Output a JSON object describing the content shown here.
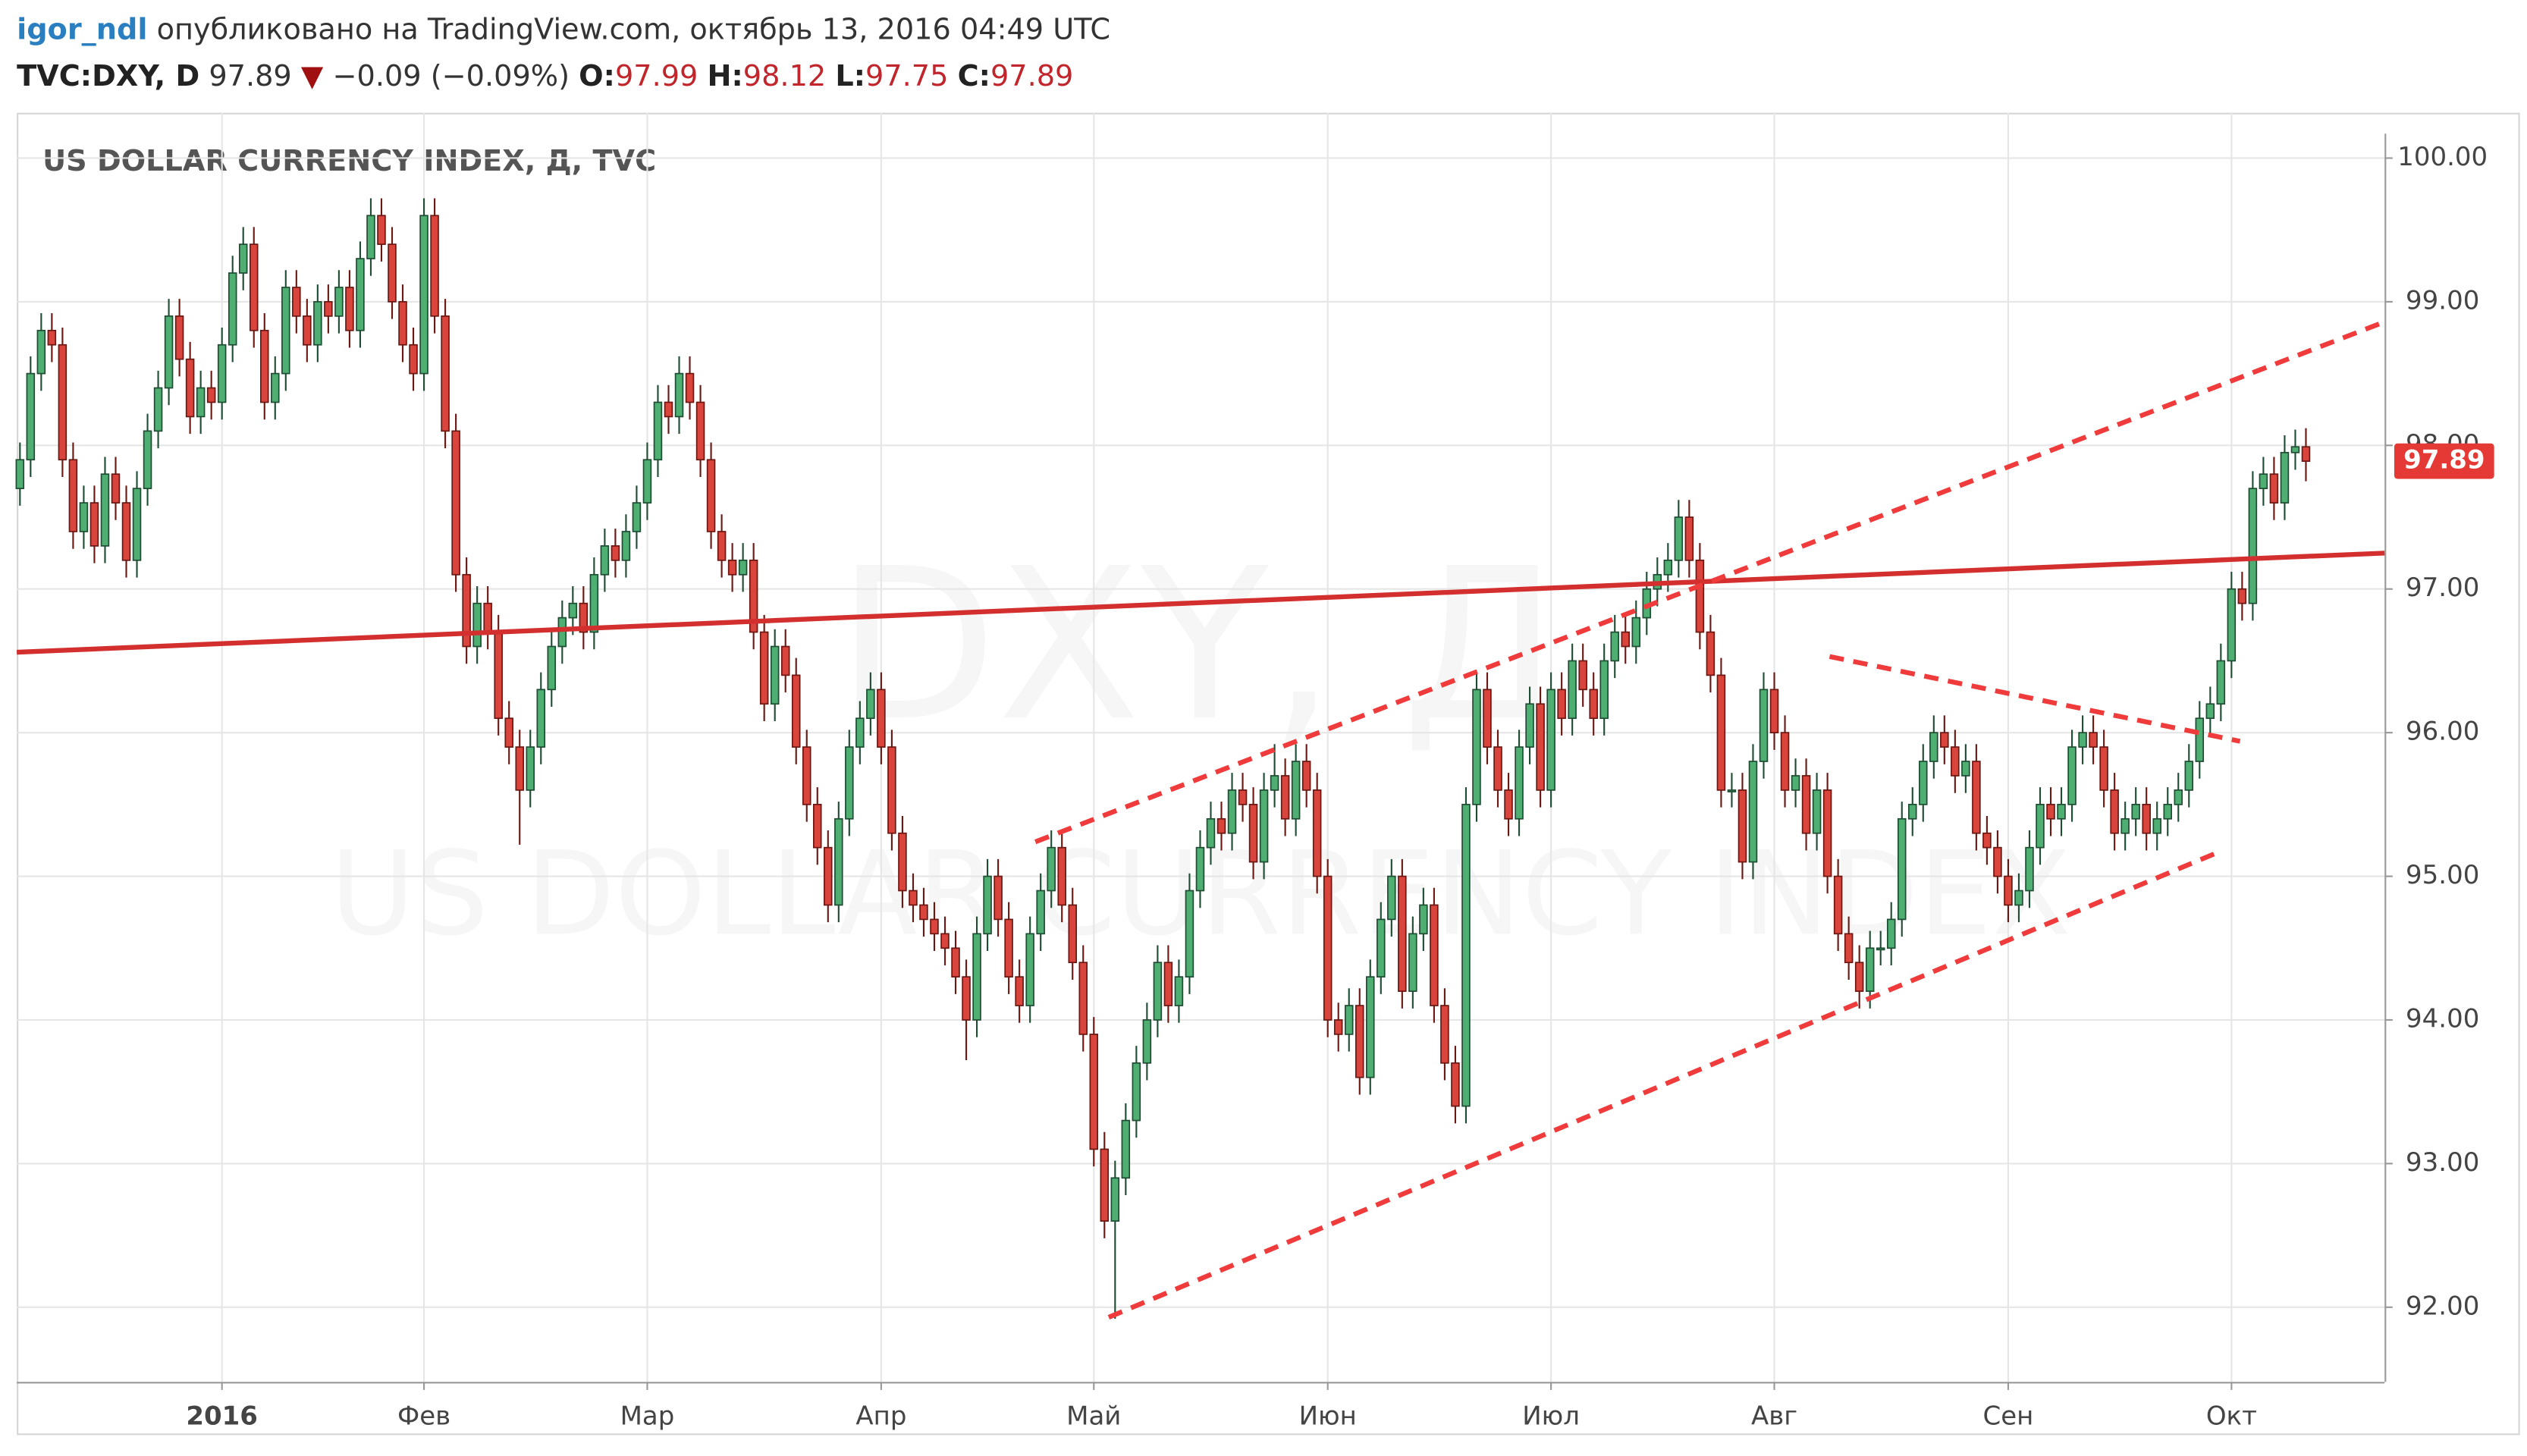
{
  "header": {
    "author": "igor_ndl",
    "published": "опубликовано на TradingView.com, октябрь 13, 2016 04:49 UTC",
    "symbol": "TVC:DXY, D",
    "direction": "▼",
    "change": "−0.09 (−0.09%)",
    "open_label": "O:",
    "high_label": "H:",
    "low_label": "L:",
    "close_label": "C:"
  },
  "chart_data": {
    "type": "candlestick",
    "title": "US DOLLAR CURRENCY INDEX, Д, TVC",
    "watermark": "DXY, Д",
    "watermark_subtitle": "US DOLLAR CURRENCY INDEX",
    "up_color": "#4fae72",
    "down_color": "#d9453c",
    "grid": true,
    "xlim": [
      -0.3,
      222.4
    ],
    "ylim": [
      91.48,
      100.17
    ],
    "xticks": [
      {
        "value": 19,
        "label": "2016"
      },
      {
        "value": 38,
        "label": "Фев"
      },
      {
        "value": 59,
        "label": "Мар"
      },
      {
        "value": 81,
        "label": "Апр"
      },
      {
        "value": 101,
        "label": "Май"
      },
      {
        "value": 123,
        "label": "Июн"
      },
      {
        "value": 144,
        "label": "Июл"
      },
      {
        "value": 165,
        "label": "Авг"
      },
      {
        "value": 187,
        "label": "Сен"
      },
      {
        "value": 208,
        "label": "Окт"
      }
    ],
    "yticks": [
      {
        "value": 92,
        "label": "92.00"
      },
      {
        "value": 93,
        "label": "93.00"
      },
      {
        "value": 94,
        "label": "94.00"
      },
      {
        "value": 95,
        "label": "95.00"
      },
      {
        "value": 96,
        "label": "96.00"
      },
      {
        "value": 97,
        "label": "97.00"
      },
      {
        "value": 98,
        "label": "98.00"
      },
      {
        "value": 99,
        "label": "99.00"
      },
      {
        "value": 100,
        "label": "100.00"
      }
    ],
    "drawings": [
      {
        "x": [
          -0.3,
          222.4
        ],
        "y": [
          96.56,
          97.25
        ],
        "color": "#d32f2f",
        "dashed": false
      },
      {
        "x": [
          95.5,
          222.4
        ],
        "y": [
          95.24,
          98.86
        ],
        "color": "#ef3b3b",
        "dashed": true
      },
      {
        "x": [
          102.4,
          206.5
        ],
        "y": [
          91.93,
          95.16
        ],
        "color": "#ef3b3b",
        "dashed": true
      },
      {
        "x": [
          170.2,
          208.8
        ],
        "y": [
          96.53,
          95.94
        ],
        "color": "#ef3b3b",
        "dashed": true
      }
    ],
    "candles": [
      [
        97.7,
        98.02,
        97.58,
        97.9
      ],
      [
        97.9,
        98.62,
        97.78,
        98.5
      ],
      [
        98.5,
        98.92,
        98.38,
        98.8
      ],
      [
        98.8,
        98.92,
        98.58,
        98.7
      ],
      [
        98.7,
        98.82,
        97.78,
        97.9
      ],
      [
        97.9,
        98.02,
        97.28,
        97.4
      ],
      [
        97.4,
        97.72,
        97.28,
        97.6
      ],
      [
        97.6,
        97.72,
        97.18,
        97.3
      ],
      [
        97.3,
        97.92,
        97.18,
        97.8
      ],
      [
        97.8,
        97.92,
        97.48,
        97.6
      ],
      [
        97.6,
        97.72,
        97.08,
        97.2
      ],
      [
        97.2,
        97.82,
        97.08,
        97.7
      ],
      [
        97.7,
        98.22,
        97.58,
        98.1
      ],
      [
        98.1,
        98.52,
        97.98,
        98.4
      ],
      [
        98.4,
        99.02,
        98.28,
        98.9
      ],
      [
        98.9,
        99.02,
        98.48,
        98.6
      ],
      [
        98.6,
        98.72,
        98.08,
        98.2
      ],
      [
        98.2,
        98.52,
        98.08,
        98.4
      ],
      [
        98.4,
        98.52,
        98.18,
        98.3
      ],
      [
        98.3,
        98.82,
        98.18,
        98.7
      ],
      [
        98.7,
        99.32,
        98.58,
        99.2
      ],
      [
        99.2,
        99.52,
        99.08,
        99.4
      ],
      [
        99.4,
        99.52,
        98.68,
        98.8
      ],
      [
        98.8,
        98.92,
        98.18,
        98.3
      ],
      [
        98.3,
        98.62,
        98.18,
        98.5
      ],
      [
        98.5,
        99.22,
        98.38,
        99.1
      ],
      [
        99.1,
        99.22,
        98.78,
        98.9
      ],
      [
        98.9,
        99.02,
        98.58,
        98.7
      ],
      [
        98.7,
        99.12,
        98.58,
        99.0
      ],
      [
        99.0,
        99.12,
        98.78,
        98.9
      ],
      [
        98.9,
        99.22,
        98.78,
        99.1
      ],
      [
        99.1,
        99.22,
        98.68,
        98.8
      ],
      [
        98.8,
        99.42,
        98.68,
        99.3
      ],
      [
        99.3,
        99.72,
        99.18,
        99.6
      ],
      [
        99.6,
        99.72,
        99.28,
        99.4
      ],
      [
        99.4,
        99.52,
        98.88,
        99.0
      ],
      [
        99.0,
        99.12,
        98.58,
        98.7
      ],
      [
        98.7,
        98.82,
        98.38,
        98.5
      ],
      [
        98.5,
        99.72,
        98.38,
        99.6
      ],
      [
        99.6,
        99.72,
        98.78,
        98.9
      ],
      [
        98.9,
        99.02,
        97.98,
        98.1
      ],
      [
        98.1,
        98.22,
        96.98,
        97.1
      ],
      [
        97.1,
        97.22,
        96.48,
        96.6
      ],
      [
        96.6,
        97.02,
        96.48,
        96.9
      ],
      [
        96.9,
        97.02,
        96.58,
        96.7
      ],
      [
        96.7,
        96.82,
        95.98,
        96.1
      ],
      [
        96.1,
        96.22,
        95.78,
        95.9
      ],
      [
        95.9,
        96.02,
        95.22,
        95.6
      ],
      [
        95.6,
        96.02,
        95.48,
        95.9
      ],
      [
        95.9,
        96.42,
        95.78,
        96.3
      ],
      [
        96.3,
        96.72,
        96.18,
        96.6
      ],
      [
        96.6,
        96.92,
        96.48,
        96.8
      ],
      [
        96.8,
        97.02,
        96.68,
        96.9
      ],
      [
        96.9,
        97.02,
        96.58,
        96.7
      ],
      [
        96.7,
        97.22,
        96.58,
        97.1
      ],
      [
        97.1,
        97.42,
        96.98,
        97.3
      ],
      [
        97.3,
        97.42,
        97.08,
        97.2
      ],
      [
        97.2,
        97.52,
        97.08,
        97.4
      ],
      [
        97.4,
        97.72,
        97.28,
        97.6
      ],
      [
        97.6,
        98.02,
        97.48,
        97.9
      ],
      [
        97.9,
        98.42,
        97.78,
        98.3
      ],
      [
        98.3,
        98.42,
        98.08,
        98.2
      ],
      [
        98.2,
        98.62,
        98.08,
        98.5
      ],
      [
        98.5,
        98.62,
        98.18,
        98.3
      ],
      [
        98.3,
        98.42,
        97.78,
        97.9
      ],
      [
        97.9,
        98.02,
        97.28,
        97.4
      ],
      [
        97.4,
        97.52,
        97.08,
        97.2
      ],
      [
        97.2,
        97.32,
        96.98,
        97.1
      ],
      [
        97.1,
        97.32,
        96.98,
        97.2
      ],
      [
        97.2,
        97.32,
        96.58,
        96.7
      ],
      [
        96.7,
        96.82,
        96.08,
        96.2
      ],
      [
        96.2,
        96.72,
        96.08,
        96.6
      ],
      [
        96.6,
        96.72,
        96.28,
        96.4
      ],
      [
        96.4,
        96.52,
        95.78,
        95.9
      ],
      [
        95.9,
        96.02,
        95.38,
        95.5
      ],
      [
        95.5,
        95.62,
        95.08,
        95.2
      ],
      [
        95.2,
        95.32,
        94.68,
        94.8
      ],
      [
        94.8,
        95.52,
        94.68,
        95.4
      ],
      [
        95.4,
        96.02,
        95.28,
        95.9
      ],
      [
        95.9,
        96.22,
        95.78,
        96.1
      ],
      [
        96.1,
        96.42,
        95.98,
        96.3
      ],
      [
        96.3,
        96.42,
        95.78,
        95.9
      ],
      [
        95.9,
        96.02,
        95.18,
        95.3
      ],
      [
        95.3,
        95.42,
        94.78,
        94.9
      ],
      [
        94.9,
        95.02,
        94.68,
        94.8
      ],
      [
        94.8,
        94.92,
        94.58,
        94.7
      ],
      [
        94.7,
        94.82,
        94.48,
        94.6
      ],
      [
        94.6,
        94.72,
        94.38,
        94.5
      ],
      [
        94.5,
        94.62,
        94.18,
        94.3
      ],
      [
        94.3,
        94.42,
        93.72,
        94.0
      ],
      [
        94.0,
        94.72,
        93.88,
        94.6
      ],
      [
        94.6,
        95.12,
        94.48,
        95.0
      ],
      [
        95.0,
        95.12,
        94.58,
        94.7
      ],
      [
        94.7,
        94.82,
        94.18,
        94.3
      ],
      [
        94.3,
        94.42,
        93.98,
        94.1
      ],
      [
        94.1,
        94.72,
        93.98,
        94.6
      ],
      [
        94.6,
        95.02,
        94.48,
        94.9
      ],
      [
        94.9,
        95.32,
        94.78,
        95.2
      ],
      [
        95.2,
        95.32,
        94.68,
        94.8
      ],
      [
        94.8,
        94.92,
        94.28,
        94.4
      ],
      [
        94.4,
        94.52,
        93.78,
        93.9
      ],
      [
        93.9,
        94.02,
        92.98,
        93.1
      ],
      [
        93.1,
        93.22,
        92.48,
        92.6
      ],
      [
        92.6,
        93.02,
        91.92,
        92.9
      ],
      [
        92.9,
        93.42,
        92.78,
        93.3
      ],
      [
        93.3,
        93.82,
        93.18,
        93.7
      ],
      [
        93.7,
        94.12,
        93.58,
        94.0
      ],
      [
        94.0,
        94.52,
        93.88,
        94.4
      ],
      [
        94.4,
        94.52,
        93.98,
        94.1
      ],
      [
        94.1,
        94.42,
        93.98,
        94.3
      ],
      [
        94.3,
        95.02,
        94.18,
        94.9
      ],
      [
        94.9,
        95.32,
        94.78,
        95.2
      ],
      [
        95.2,
        95.52,
        95.08,
        95.4
      ],
      [
        95.4,
        95.52,
        95.18,
        95.3
      ],
      [
        95.3,
        95.72,
        95.18,
        95.6
      ],
      [
        95.6,
        95.72,
        95.38,
        95.5
      ],
      [
        95.5,
        95.62,
        94.98,
        95.1
      ],
      [
        95.1,
        95.72,
        94.98,
        95.6
      ],
      [
        95.6,
        95.92,
        95.48,
        95.7
      ],
      [
        95.7,
        95.82,
        95.28,
        95.4
      ],
      [
        95.4,
        95.92,
        95.28,
        95.8
      ],
      [
        95.8,
        95.92,
        95.48,
        95.6
      ],
      [
        95.6,
        95.72,
        94.88,
        95.0
      ],
      [
        95.0,
        95.12,
        93.88,
        94.0
      ],
      [
        94.0,
        94.12,
        93.78,
        93.9
      ],
      [
        93.9,
        94.22,
        93.78,
        94.1
      ],
      [
        94.1,
        94.22,
        93.48,
        93.6
      ],
      [
        93.6,
        94.42,
        93.48,
        94.3
      ],
      [
        94.3,
        94.82,
        94.18,
        94.7
      ],
      [
        94.7,
        95.12,
        94.58,
        95.0
      ],
      [
        95.0,
        95.12,
        94.08,
        94.2
      ],
      [
        94.2,
        94.72,
        94.08,
        94.6
      ],
      [
        94.6,
        94.92,
        94.48,
        94.8
      ],
      [
        94.8,
        94.92,
        93.98,
        94.1
      ],
      [
        94.1,
        94.22,
        93.58,
        93.7
      ],
      [
        93.7,
        93.82,
        93.28,
        93.4
      ],
      [
        93.4,
        95.62,
        93.28,
        95.5
      ],
      [
        95.5,
        96.42,
        95.38,
        96.3
      ],
      [
        96.3,
        96.42,
        95.78,
        95.9
      ],
      [
        95.9,
        96.02,
        95.48,
        95.6
      ],
      [
        95.6,
        95.72,
        95.28,
        95.4
      ],
      [
        95.4,
        96.02,
        95.28,
        95.9
      ],
      [
        95.9,
        96.32,
        95.78,
        96.2
      ],
      [
        96.2,
        96.32,
        95.48,
        95.6
      ],
      [
        95.6,
        96.42,
        95.48,
        96.3
      ],
      [
        96.3,
        96.42,
        95.98,
        96.1
      ],
      [
        96.1,
        96.62,
        95.98,
        96.5
      ],
      [
        96.5,
        96.62,
        96.18,
        96.3
      ],
      [
        96.3,
        96.42,
        95.98,
        96.1
      ],
      [
        96.1,
        96.62,
        95.98,
        96.5
      ],
      [
        96.5,
        96.82,
        96.38,
        96.7
      ],
      [
        96.7,
        96.82,
        96.48,
        96.6
      ],
      [
        96.6,
        96.92,
        96.48,
        96.8
      ],
      [
        96.8,
        97.12,
        96.68,
        97.0
      ],
      [
        97.0,
        97.22,
        96.88,
        97.1
      ],
      [
        97.1,
        97.32,
        96.98,
        97.2
      ],
      [
        97.2,
        97.62,
        97.08,
        97.5
      ],
      [
        97.5,
        97.62,
        97.08,
        97.2
      ],
      [
        97.2,
        97.32,
        96.58,
        96.7
      ],
      [
        96.7,
        96.82,
        96.28,
        96.4
      ],
      [
        96.4,
        96.52,
        95.48,
        95.6
      ],
      [
        95.6,
        95.72,
        95.48,
        95.6
      ],
      [
        95.6,
        95.72,
        94.98,
        95.1
      ],
      [
        95.1,
        95.92,
        94.98,
        95.8
      ],
      [
        95.8,
        96.42,
        95.68,
        96.3
      ],
      [
        96.3,
        96.42,
        95.88,
        96.0
      ],
      [
        96.0,
        96.12,
        95.48,
        95.6
      ],
      [
        95.6,
        95.82,
        95.48,
        95.7
      ],
      [
        95.7,
        95.82,
        95.18,
        95.3
      ],
      [
        95.3,
        95.72,
        95.18,
        95.6
      ],
      [
        95.6,
        95.72,
        94.88,
        95.0
      ],
      [
        95.0,
        95.12,
        94.48,
        94.6
      ],
      [
        94.6,
        94.72,
        94.28,
        94.4
      ],
      [
        94.4,
        94.52,
        94.08,
        94.2
      ],
      [
        94.2,
        94.62,
        94.08,
        94.5
      ],
      [
        94.5,
        94.62,
        94.38,
        94.5
      ],
      [
        94.5,
        94.82,
        94.38,
        94.7
      ],
      [
        94.7,
        95.52,
        94.58,
        95.4
      ],
      [
        95.4,
        95.62,
        95.28,
        95.5
      ],
      [
        95.5,
        95.92,
        95.38,
        95.8
      ],
      [
        95.8,
        96.12,
        95.68,
        96.0
      ],
      [
        96.0,
        96.12,
        95.78,
        95.9
      ],
      [
        95.9,
        96.02,
        95.58,
        95.7
      ],
      [
        95.7,
        95.92,
        95.58,
        95.8
      ],
      [
        95.8,
        95.92,
        95.18,
        95.3
      ],
      [
        95.3,
        95.42,
        95.08,
        95.2
      ],
      [
        95.2,
        95.32,
        94.88,
        95.0
      ],
      [
        95.0,
        95.12,
        94.68,
        94.8
      ],
      [
        94.8,
        95.02,
        94.68,
        94.9
      ],
      [
        94.9,
        95.32,
        94.78,
        95.2
      ],
      [
        95.2,
        95.62,
        95.08,
        95.5
      ],
      [
        95.5,
        95.62,
        95.28,
        95.4
      ],
      [
        95.4,
        95.62,
        95.28,
        95.5
      ],
      [
        95.5,
        96.02,
        95.38,
        95.9
      ],
      [
        95.9,
        96.12,
        95.78,
        96.0
      ],
      [
        96.0,
        96.12,
        95.78,
        95.9
      ],
      [
        95.9,
        96.02,
        95.48,
        95.6
      ],
      [
        95.6,
        95.72,
        95.18,
        95.3
      ],
      [
        95.3,
        95.52,
        95.18,
        95.4
      ],
      [
        95.4,
        95.62,
        95.28,
        95.5
      ],
      [
        95.5,
        95.62,
        95.18,
        95.3
      ],
      [
        95.3,
        95.52,
        95.18,
        95.4
      ],
      [
        95.4,
        95.62,
        95.28,
        95.5
      ],
      [
        95.5,
        95.72,
        95.38,
        95.6
      ],
      [
        95.6,
        95.92,
        95.48,
        95.8
      ],
      [
        95.8,
        96.22,
        95.68,
        96.1
      ],
      [
        96.1,
        96.32,
        95.98,
        96.2
      ],
      [
        96.2,
        96.62,
        96.08,
        96.5
      ],
      [
        96.5,
        97.12,
        96.38,
        97.0
      ],
      [
        97.0,
        97.12,
        96.78,
        96.9
      ],
      [
        96.9,
        97.82,
        96.78,
        97.7
      ],
      [
        97.7,
        97.92,
        97.58,
        97.8
      ],
      [
        97.8,
        97.92,
        97.48,
        97.6
      ],
      [
        97.6,
        98.07,
        97.48,
        97.95
      ],
      [
        97.95,
        98.11,
        97.83,
        97.99
      ],
      [
        97.99,
        98.12,
        97.75,
        97.89
      ]
    ]
  }
}
